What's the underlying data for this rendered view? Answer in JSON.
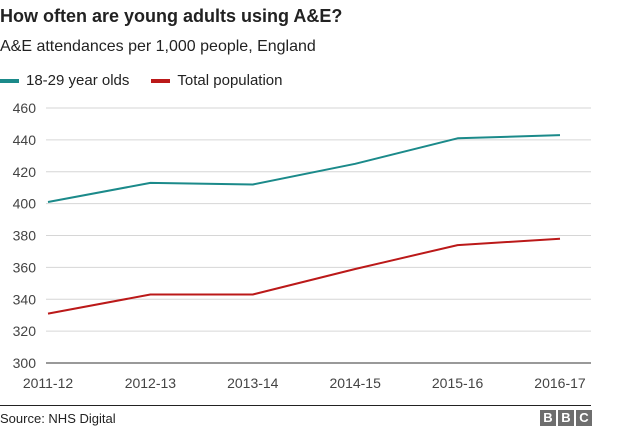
{
  "header": {
    "title": "How often are young adults using A&E?",
    "subtitle": "A&E attendances per 1,000 people, England"
  },
  "chart_data": {
    "type": "line",
    "title": "How often are young adults using A&E?",
    "subtitle": "A&E attendances per 1,000 people, England",
    "categories": [
      "2011-12",
      "2012-13",
      "2013-14",
      "2014-15",
      "2015-16",
      "2016-17"
    ],
    "ylim": [
      300,
      460
    ],
    "yticks": [
      460,
      440,
      420,
      400,
      380,
      360,
      340,
      320,
      300
    ],
    "grid": true,
    "legend_position": "top-left",
    "series": [
      {
        "name": "18-29 year olds",
        "color": "#1b8a8a",
        "values": [
          401,
          413,
          412,
          425,
          441,
          443
        ]
      },
      {
        "name": "Total population",
        "color": "#bb1919",
        "values": [
          331,
          343,
          343,
          359,
          374,
          378
        ]
      }
    ]
  },
  "footer": {
    "source": "Source: NHS Digital",
    "logo_letters": [
      "B",
      "B",
      "C"
    ]
  }
}
